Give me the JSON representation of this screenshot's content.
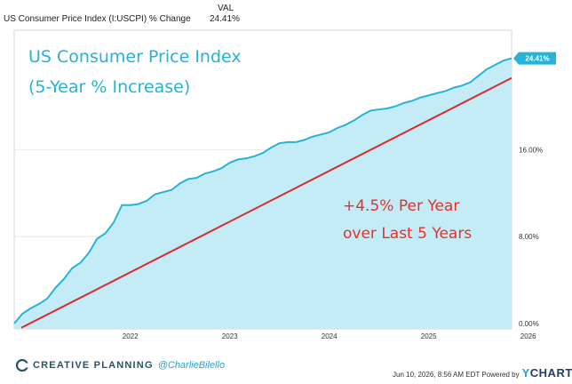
{
  "legend": {
    "column_title": "VAL",
    "series_name": "US Consumer Price Index (I:USCPI) % Change",
    "series_value": "24.41%"
  },
  "annotations": {
    "title_line1": "US Consumer Price Index",
    "title_line2": "(5-Year % Increase)",
    "note_line1": "+4.5% Per Year",
    "note_line2": "over Last 5 Years"
  },
  "footer": {
    "brand": "CREATIVE PLANNING",
    "handle": "@CharlieBilello",
    "timestamp": "Jun 10, 2026, 8:56 AM EDT Powered by",
    "ycharts": "YCHARTS"
  },
  "colors": {
    "line": "#27b3d9",
    "area": "#c4ecf7",
    "trend": "#d92b2b",
    "annotation_blue": "#29b0d8",
    "annotation_red": "#e3312a",
    "grid": "#e8e8e8"
  },
  "chart_data": {
    "type": "area",
    "x_start": "2021-05",
    "x_end": "2026-05",
    "x_tick_labels": [
      "2022",
      "2023",
      "2024",
      "2025",
      "2026"
    ],
    "y_tick_labels": [
      "0.00%",
      "8.00%",
      "16.00%"
    ],
    "y_ticks": [
      0,
      8,
      16
    ],
    "ylim": [
      -0.5,
      27
    ],
    "last_value_label": "24.41%",
    "series": [
      {
        "name": "US Consumer Price Index (I:USCPI) % Change",
        "x": [
          "2021-05",
          "2021-06",
          "2021-07",
          "2021-08",
          "2021-09",
          "2021-10",
          "2021-11",
          "2021-12",
          "2022-01",
          "2022-02",
          "2022-03",
          "2022-04",
          "2022-05",
          "2022-06",
          "2022-07",
          "2022-08",
          "2022-09",
          "2022-10",
          "2022-11",
          "2022-12",
          "2023-01",
          "2023-02",
          "2023-03",
          "2023-04",
          "2023-05",
          "2023-06",
          "2023-07",
          "2023-08",
          "2023-09",
          "2023-10",
          "2023-11",
          "2023-12",
          "2024-01",
          "2024-02",
          "2024-03",
          "2024-04",
          "2024-05",
          "2024-06",
          "2024-07",
          "2024-08",
          "2024-09",
          "2024-10",
          "2024-11",
          "2024-12",
          "2025-01",
          "2025-02",
          "2025-03",
          "2025-04",
          "2025-05",
          "2025-06",
          "2025-07",
          "2025-08",
          "2025-09",
          "2025-10",
          "2025-11",
          "2025-12",
          "2026-01",
          "2026-02",
          "2026-03",
          "2026-04",
          "2026-05"
        ],
        "values": [
          0.0,
          0.9,
          1.4,
          1.8,
          2.3,
          3.3,
          4.1,
          5.1,
          5.6,
          6.5,
          7.8,
          8.3,
          9.3,
          10.9,
          10.9,
          11.0,
          11.3,
          11.9,
          12.1,
          12.3,
          12.9,
          13.3,
          13.4,
          13.8,
          14.0,
          14.3,
          14.8,
          15.1,
          15.2,
          15.4,
          15.7,
          16.2,
          16.6,
          16.7,
          16.7,
          16.9,
          17.2,
          17.4,
          17.6,
          18.0,
          18.3,
          18.7,
          19.2,
          19.6,
          19.7,
          19.8,
          20.0,
          20.3,
          20.5,
          20.8,
          21.0,
          21.2,
          21.4,
          21.7,
          21.9,
          22.2,
          22.8,
          23.4,
          23.8,
          24.2,
          24.41
        ]
      }
    ],
    "trend_line": {
      "x": [
        "2021-05",
        "2026-05"
      ],
      "values": [
        -0.4,
        22.6
      ]
    }
  }
}
